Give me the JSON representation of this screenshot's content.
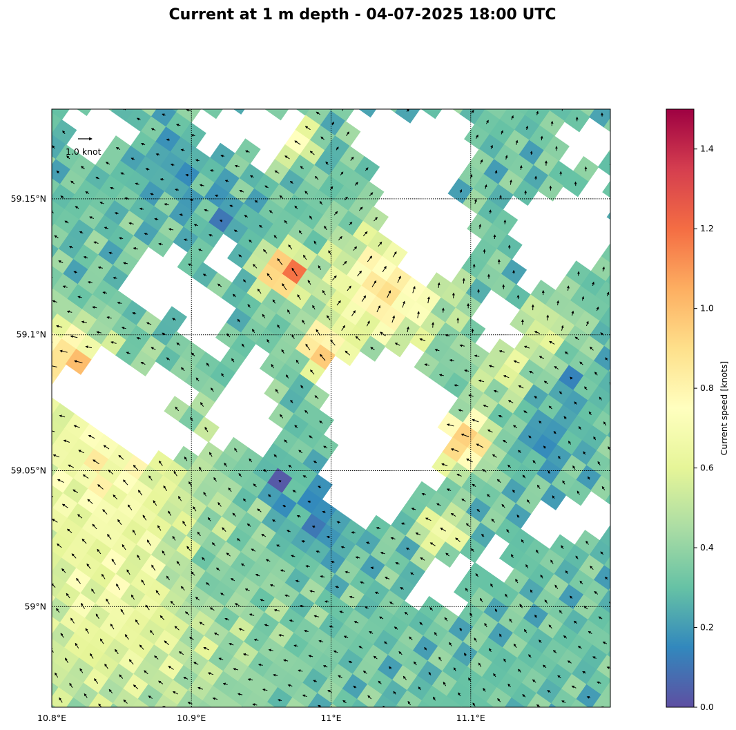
{
  "figure": {
    "title": "Current at 1 m depth - 04-07-2025 18:00 UTC"
  },
  "map": {
    "lon_range": [
      10.8,
      11.2
    ],
    "lat_range": [
      58.963,
      59.183
    ],
    "lon_ticks": [
      {
        "value": 10.8,
        "label": "10.8°E"
      },
      {
        "value": 10.9,
        "label": "10.9°E"
      },
      {
        "value": 11.0,
        "label": "11°E"
      },
      {
        "value": 11.1,
        "label": "11.1°E"
      }
    ],
    "lat_ticks": [
      {
        "value": 59.15,
        "label": "59.15°N"
      },
      {
        "value": 59.1,
        "label": "59.1°N"
      },
      {
        "value": 59.05,
        "label": "59.05°N"
      },
      {
        "value": 59.0,
        "label": "59°N"
      }
    ],
    "gridlines": "dotted",
    "quiver_key": {
      "label": "1.0 knot",
      "value": 1.0
    }
  },
  "colorbar": {
    "label": "Current speed [knots]",
    "colormap": "Spectral_r",
    "range": [
      0,
      1.5
    ],
    "ticks": [
      {
        "value": 0.0,
        "label": "0.0"
      },
      {
        "value": 0.2,
        "label": "0.2"
      },
      {
        "value": 0.4,
        "label": "0.4"
      },
      {
        "value": 0.6,
        "label": "0.6"
      },
      {
        "value": 0.8,
        "label": "0.8"
      },
      {
        "value": 1.0,
        "label": "1.0"
      },
      {
        "value": 1.2,
        "label": "1.2"
      },
      {
        "value": 1.4,
        "label": "1.4"
      }
    ],
    "stops": [
      "#5e4fa2",
      "#3288bd",
      "#66c2a5",
      "#abdda4",
      "#e6f598",
      "#ffffbf",
      "#fee08b",
      "#fdae61",
      "#f46d43",
      "#d53e4f",
      "#9e0142"
    ]
  }
}
